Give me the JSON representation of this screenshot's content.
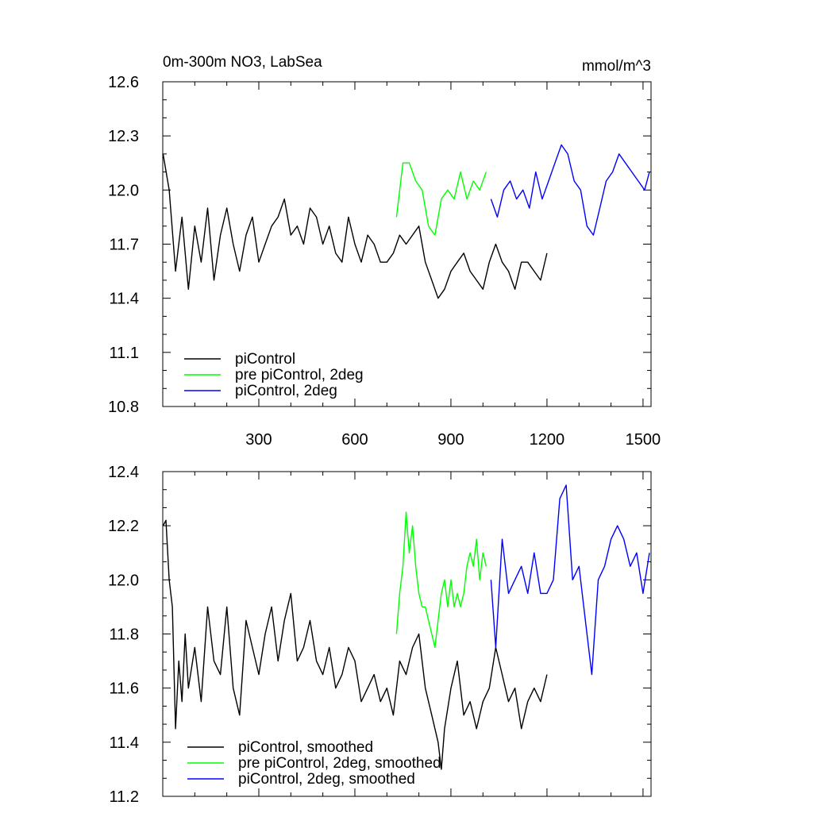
{
  "chart_data": [
    {
      "type": "line",
      "title": "0m-300m NO3, LabSea",
      "units": "mmol/m^3",
      "xlim": [
        0,
        1525
      ],
      "ylim": [
        10.8,
        12.6
      ],
      "xticks": [
        300,
        600,
        900,
        1200,
        1500
      ],
      "xtick_labels": [
        "300",
        "600",
        "900",
        "1200",
        "1500"
      ],
      "yticks": [
        10.8,
        11.1,
        11.4,
        11.7,
        12.0,
        12.3,
        12.6
      ],
      "ytick_labels": [
        "10.8",
        "11.1",
        "11.4",
        "11.7",
        "12.0",
        "12.3",
        "12.6"
      ],
      "grid": false,
      "legend_position": "bottom-left",
      "series": [
        {
          "name": "piControl",
          "color": "#000000",
          "x": [
            1,
            20,
            40,
            60,
            80,
            100,
            120,
            140,
            160,
            180,
            200,
            220,
            240,
            260,
            280,
            300,
            320,
            340,
            360,
            380,
            400,
            420,
            440,
            460,
            480,
            500,
            520,
            540,
            560,
            580,
            600,
            620,
            640,
            660,
            680,
            700,
            720,
            740,
            760,
            780,
            800,
            820,
            840,
            860,
            880,
            900,
            920,
            940,
            960,
            980,
            1000,
            1020,
            1040,
            1060,
            1080,
            1100,
            1120,
            1140,
            1160,
            1180,
            1200
          ],
          "values": [
            12.2,
            12.0,
            11.55,
            11.85,
            11.45,
            11.8,
            11.6,
            11.9,
            11.5,
            11.75,
            11.9,
            11.7,
            11.55,
            11.75,
            11.85,
            11.6,
            11.7,
            11.8,
            11.85,
            11.95,
            11.75,
            11.8,
            11.7,
            11.9,
            11.85,
            11.7,
            11.8,
            11.65,
            11.6,
            11.85,
            11.7,
            11.6,
            11.75,
            11.7,
            11.6,
            11.6,
            11.65,
            11.75,
            11.7,
            11.75,
            11.8,
            11.6,
            11.5,
            11.4,
            11.45,
            11.55,
            11.6,
            11.65,
            11.55,
            11.5,
            11.45,
            11.6,
            11.7,
            11.6,
            11.55,
            11.45,
            11.6,
            11.6,
            11.55,
            11.5,
            11.65
          ]
        },
        {
          "name": "pre piControl, 2deg",
          "color": "#00ff00",
          "x": [
            730,
            750,
            770,
            790,
            810,
            830,
            850,
            870,
            890,
            910,
            930,
            950,
            970,
            990,
            1010
          ],
          "values": [
            11.85,
            12.15,
            12.15,
            12.05,
            12.0,
            11.8,
            11.75,
            11.95,
            12.0,
            11.95,
            12.1,
            11.95,
            12.05,
            12.0,
            12.1
          ]
        },
        {
          "name": "piControl, 2deg",
          "color": "#0000ff",
          "x": [
            1025,
            1045,
            1065,
            1085,
            1105,
            1125,
            1145,
            1165,
            1185,
            1205,
            1225,
            1245,
            1265,
            1285,
            1305,
            1325,
            1345,
            1365,
            1385,
            1405,
            1425,
            1445,
            1465,
            1485,
            1505,
            1520
          ],
          "values": [
            11.95,
            11.85,
            12.0,
            12.05,
            11.95,
            12.0,
            11.9,
            12.1,
            11.95,
            12.05,
            12.15,
            12.25,
            12.2,
            12.05,
            12.0,
            11.8,
            11.75,
            11.9,
            12.05,
            12.1,
            12.2,
            12.15,
            12.1,
            12.05,
            12.0,
            12.1
          ]
        }
      ]
    },
    {
      "type": "line",
      "xlim": [
        0,
        1525
      ],
      "ylim": [
        11.2,
        12.4
      ],
      "xticks": [
        300,
        600,
        900,
        1200,
        1500
      ],
      "yticks": [
        11.2,
        11.4,
        11.6,
        11.8,
        12.0,
        12.2,
        12.4
      ],
      "ytick_labels": [
        "11.2",
        "11.4",
        "11.6",
        "11.8",
        "12.0",
        "12.2",
        "12.4"
      ],
      "grid": false,
      "legend_position": "bottom-left",
      "series": [
        {
          "name": "piControl, smoothed",
          "color": "#000000",
          "x": [
            1,
            10,
            20,
            30,
            40,
            50,
            60,
            70,
            80,
            100,
            120,
            140,
            160,
            180,
            200,
            220,
            240,
            260,
            280,
            300,
            320,
            340,
            360,
            380,
            400,
            420,
            440,
            460,
            480,
            500,
            520,
            540,
            560,
            580,
            600,
            620,
            640,
            660,
            680,
            700,
            720,
            740,
            760,
            780,
            800,
            820,
            840,
            860,
            870,
            880,
            900,
            920,
            940,
            960,
            980,
            1000,
            1020,
            1040,
            1060,
            1080,
            1100,
            1120,
            1140,
            1160,
            1180,
            1200
          ],
          "values": [
            12.2,
            12.22,
            12.0,
            11.9,
            11.45,
            11.7,
            11.55,
            11.8,
            11.6,
            11.75,
            11.55,
            11.9,
            11.7,
            11.65,
            11.9,
            11.6,
            11.5,
            11.85,
            11.75,
            11.65,
            11.8,
            11.9,
            11.7,
            11.85,
            11.95,
            11.7,
            11.75,
            11.85,
            11.7,
            11.65,
            11.75,
            11.6,
            11.65,
            11.75,
            11.7,
            11.55,
            11.6,
            11.65,
            11.55,
            11.6,
            11.5,
            11.7,
            11.65,
            11.75,
            11.8,
            11.6,
            11.5,
            11.4,
            11.3,
            11.45,
            11.6,
            11.7,
            11.5,
            11.55,
            11.45,
            11.55,
            11.6,
            11.75,
            11.65,
            11.55,
            11.6,
            11.45,
            11.55,
            11.6,
            11.55,
            11.65
          ]
        },
        {
          "name": "pre piControl, 2deg, smoothed",
          "color": "#00ff00",
          "x": [
            730,
            740,
            750,
            760,
            770,
            780,
            790,
            800,
            810,
            820,
            830,
            840,
            850,
            860,
            870,
            880,
            890,
            900,
            910,
            920,
            930,
            940,
            950,
            960,
            970,
            980,
            990,
            1000,
            1010
          ],
          "values": [
            11.8,
            11.95,
            12.05,
            12.25,
            12.1,
            12.2,
            12.05,
            11.95,
            11.9,
            11.9,
            11.85,
            11.8,
            11.75,
            11.85,
            11.95,
            12.0,
            11.9,
            12.0,
            11.9,
            11.95,
            11.9,
            11.95,
            12.05,
            12.1,
            12.05,
            12.15,
            12.0,
            12.1,
            12.05
          ]
        },
        {
          "name": "piControl, 2deg, smoothed",
          "color": "#0000ff",
          "x": [
            1025,
            1040,
            1060,
            1080,
            1100,
            1120,
            1140,
            1160,
            1180,
            1200,
            1220,
            1240,
            1260,
            1280,
            1300,
            1320,
            1340,
            1360,
            1380,
            1400,
            1420,
            1440,
            1460,
            1480,
            1500,
            1520
          ],
          "values": [
            12.0,
            11.75,
            12.15,
            11.95,
            12.0,
            12.05,
            11.95,
            12.1,
            11.95,
            11.95,
            12.0,
            12.3,
            12.35,
            12.0,
            12.05,
            11.85,
            11.65,
            12.0,
            12.05,
            12.15,
            12.2,
            12.15,
            12.05,
            12.1,
            11.95,
            12.1
          ]
        }
      ]
    }
  ]
}
